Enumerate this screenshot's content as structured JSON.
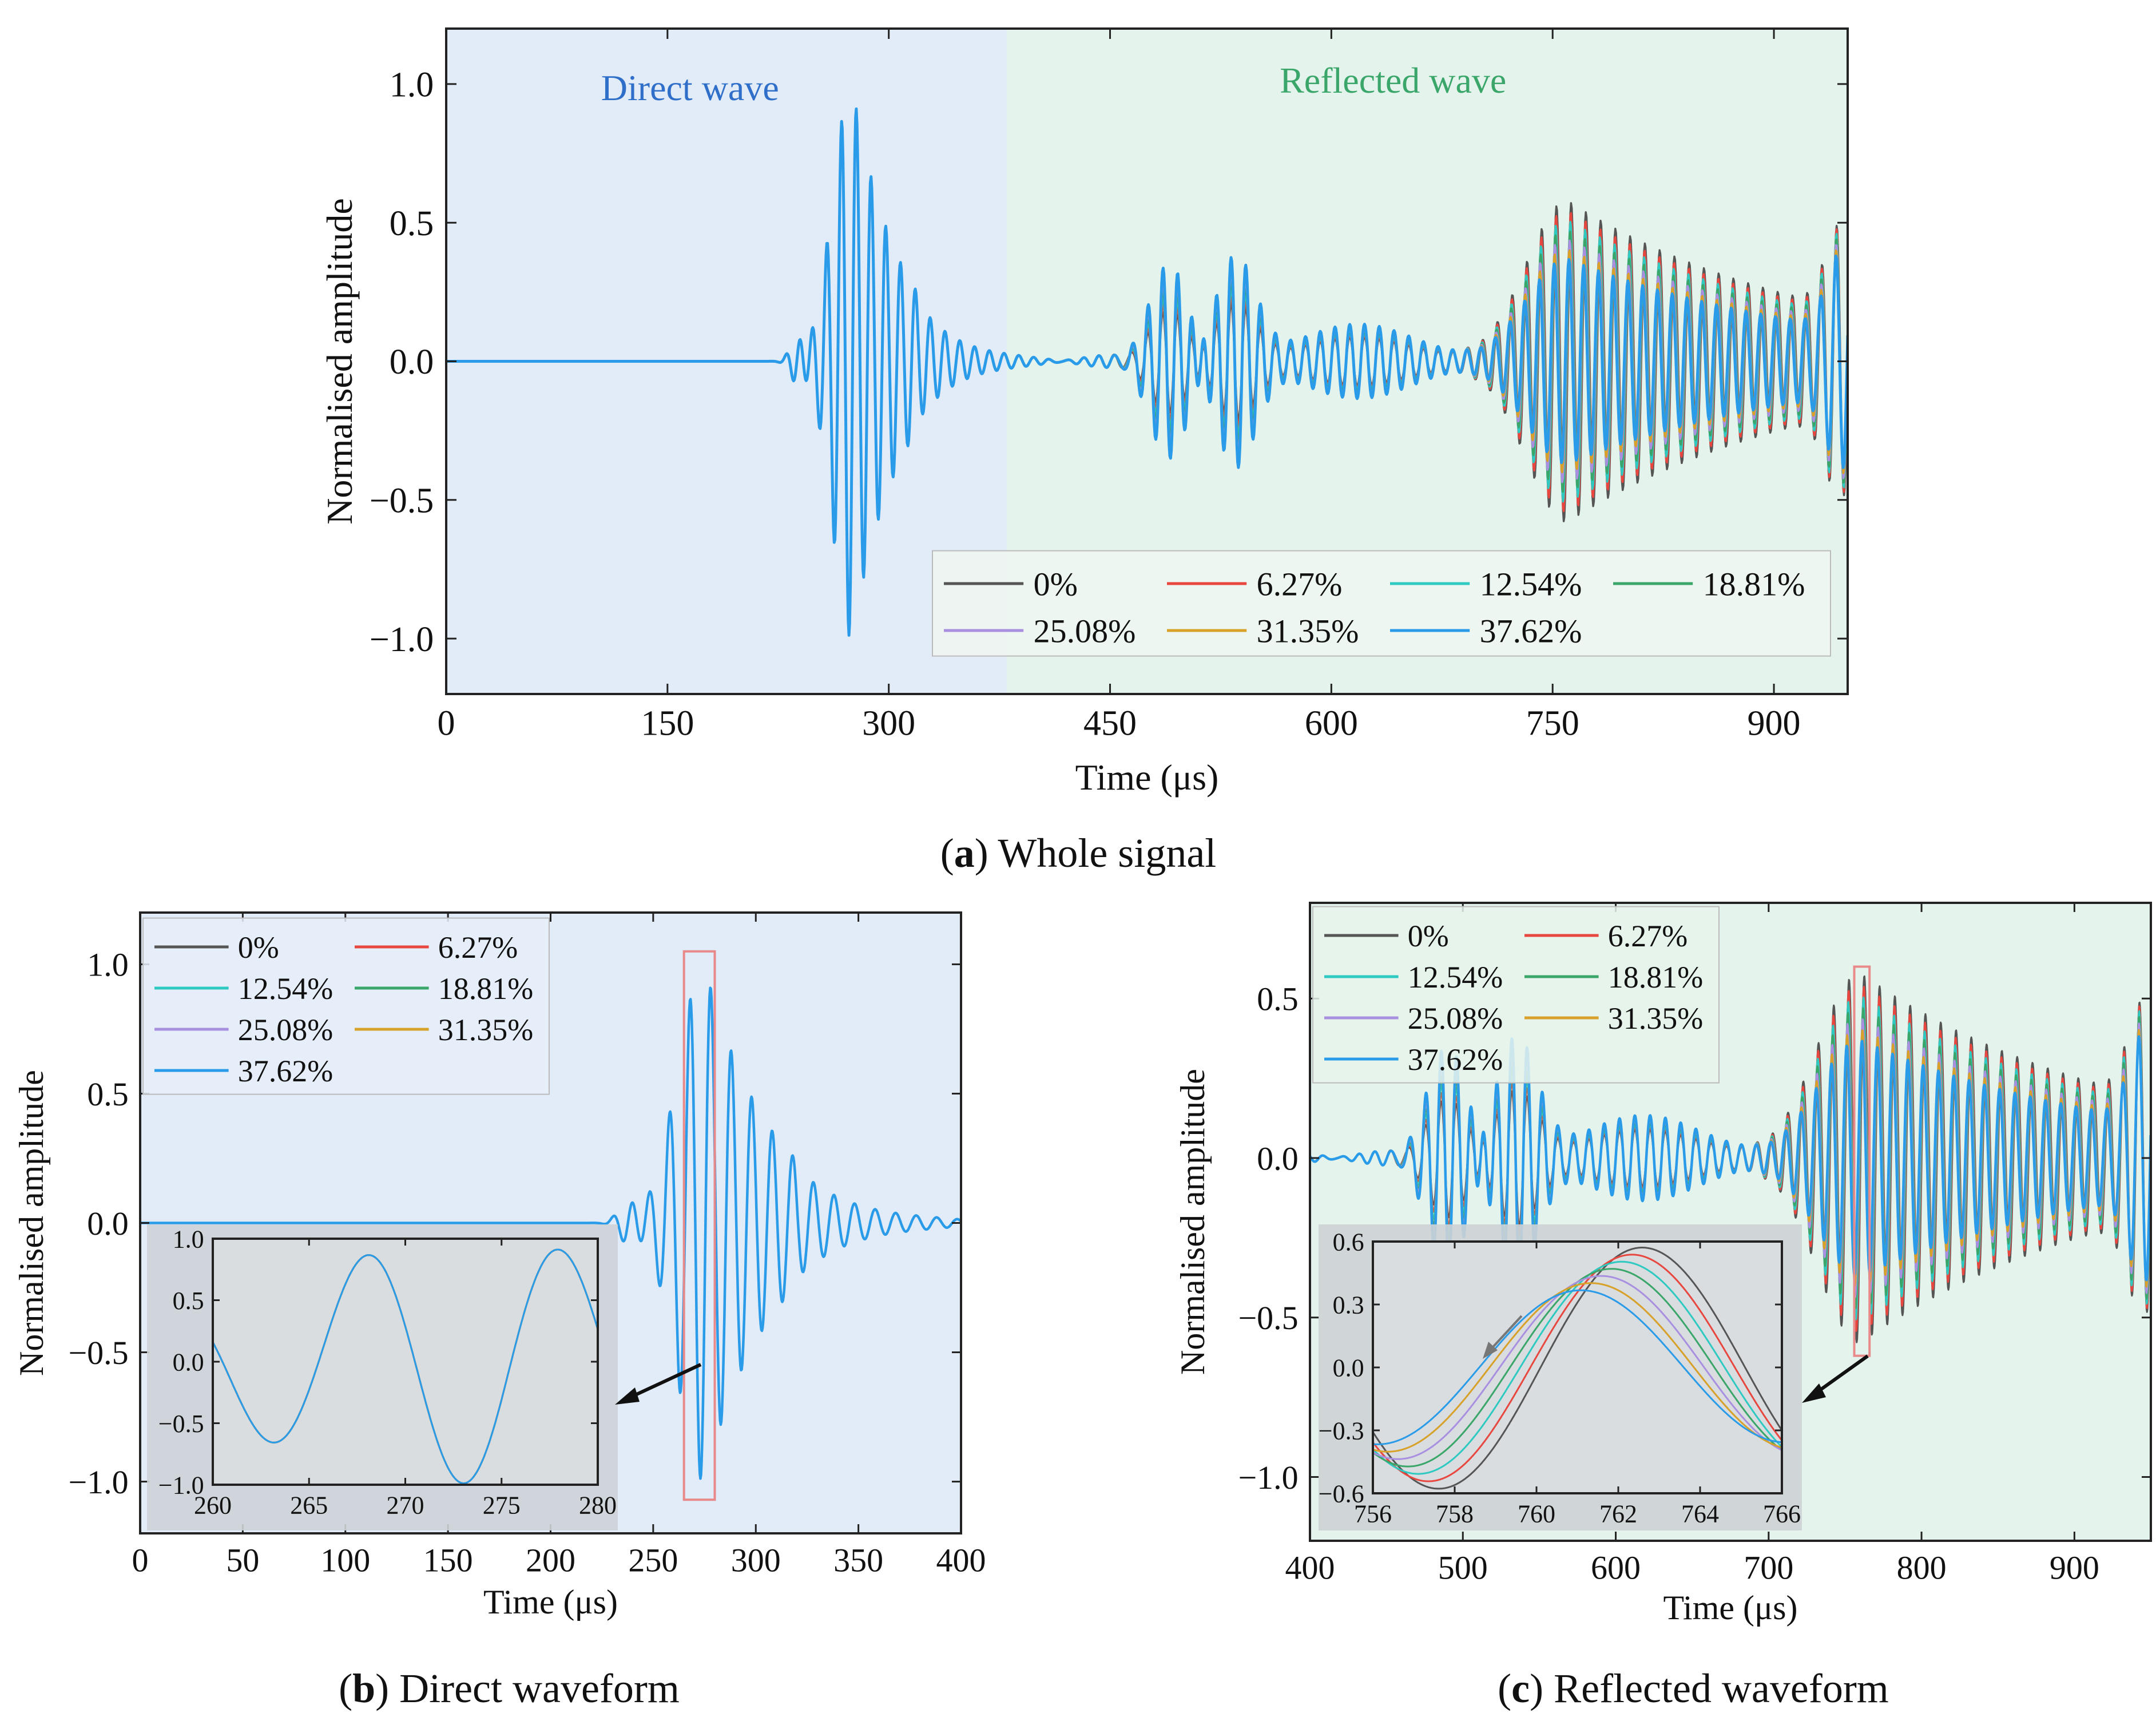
{
  "legend_series": [
    "0%",
    "6.27%",
    "12.54%",
    "18.81%",
    "25.08%",
    "31.35%",
    "37.62%"
  ],
  "colors": [
    "#555555",
    "#e8473f",
    "#2ec9c0",
    "#3aa66a",
    "#a98fe0",
    "#d7a12a",
    "#2a9be8"
  ],
  "shade_colors": {
    "direct": "#e1ecf8",
    "reflected": "#e4f3ec",
    "inset": "#cdd3d6"
  },
  "chart_data": [
    {
      "id": "a",
      "type": "line",
      "caption_letter": "a",
      "caption_text": " Whole signal",
      "xlabel": "Time (μs)",
      "ylabel": "Normalised amplitude",
      "xlim": [
        0,
        950
      ],
      "ylim": [
        -1.2,
        1.2
      ],
      "xticks": [
        0,
        150,
        300,
        450,
        600,
        750,
        900
      ],
      "yticks": [
        -1.0,
        -0.5,
        0.0,
        0.5,
        1.0
      ],
      "ytick_labels": [
        "−1.0",
        "−0.5",
        "0.0",
        "0.5",
        "1.0"
      ],
      "regions": [
        {
          "name": "Direct wave",
          "x0": 0,
          "x1": 380,
          "color": "#2f6fc9"
        },
        {
          "name": "Reflected wave",
          "x0": 380,
          "x1": 950,
          "color": "#3aa66a"
        }
      ],
      "legend_position": "bottom-right",
      "series_description": "Ultrasonic guided-wave signals for 7 damage levels; direct packet peaks near 275 μs (amplitude 1.0), reflected packets near 480-540 μs (±0.37) and 762 μs (±0.58)"
    },
    {
      "id": "b",
      "type": "line",
      "caption_letter": "b",
      "caption_text": " Direct waveform",
      "xlabel": "Time (μs)",
      "ylabel": "Normalised amplitude",
      "xlim": [
        0,
        400
      ],
      "ylim": [
        -1.2,
        1.2
      ],
      "xticks": [
        0,
        50,
        100,
        150,
        200,
        250,
        300,
        350,
        400
      ],
      "yticks": [
        -1.0,
        -0.5,
        0.0,
        0.5,
        1.0
      ],
      "ytick_labels": [
        "−1.0",
        "−0.5",
        "0.0",
        "0.5",
        "1.0"
      ],
      "highlight_box": [
        265,
        280
      ],
      "legend_position": "top-left",
      "inset": {
        "xlim": [
          260,
          280
        ],
        "ylim": [
          -1.0,
          1.0
        ],
        "xticks": [
          260,
          265,
          270,
          275,
          280
        ],
        "yticks": [
          -1.0,
          -0.5,
          0.0,
          0.5,
          1.0
        ],
        "ytick_labels": [
          "−1.0",
          "−0.5",
          "0.0",
          "0.5",
          "1.0"
        ]
      }
    },
    {
      "id": "c",
      "type": "line",
      "caption_letter": "c",
      "caption_text": " Reflected waveform",
      "xlabel": "Time (μs)",
      "ylabel": "Normalised amplitude",
      "xlim": [
        400,
        950
      ],
      "ylim": [
        -1.2,
        0.8
      ],
      "xticks": [
        400,
        500,
        600,
        700,
        800,
        900
      ],
      "yticks": [
        -1.0,
        -0.5,
        0.0,
        0.5
      ],
      "ytick_labels": [
        "−1.0",
        "−0.5",
        "0.0",
        "0.5"
      ],
      "highlight_box": [
        756,
        766
      ],
      "legend_position": "top-left",
      "inset": {
        "xlim": [
          756,
          766
        ],
        "ylim": [
          -0.6,
          0.6
        ],
        "xticks": [
          756,
          758,
          760,
          762,
          764,
          766
        ],
        "yticks": [
          -0.6,
          -0.3,
          0.0,
          0.3,
          0.6
        ],
        "ytick_labels": [
          "−0.6",
          "−0.3",
          "0.0",
          "0.3",
          "0.6"
        ]
      }
    }
  ]
}
